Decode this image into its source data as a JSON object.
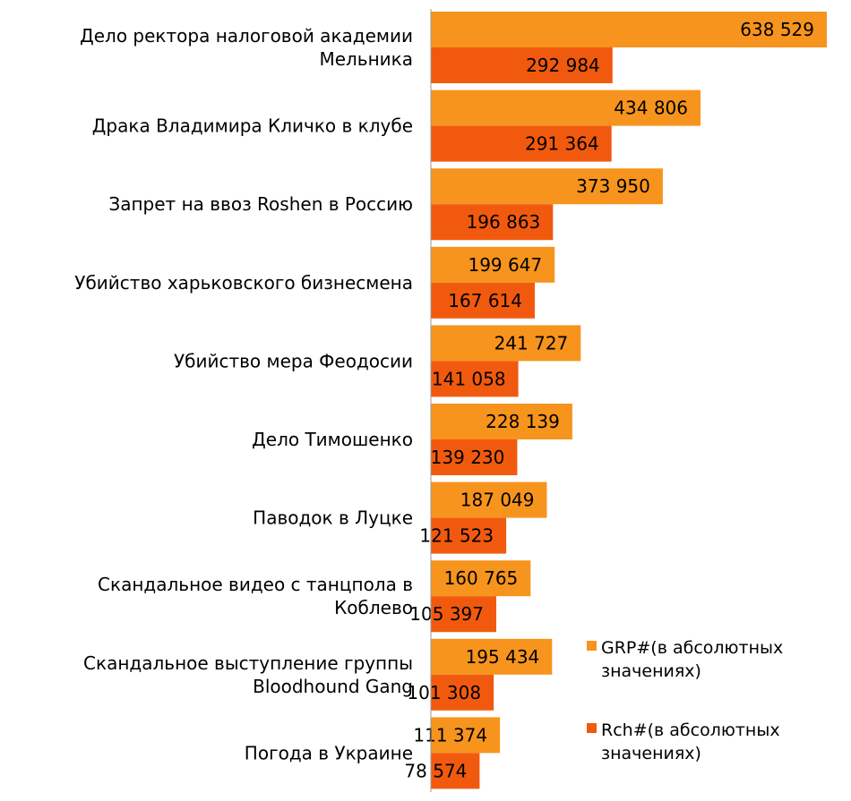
{
  "chart_data": {
    "type": "bar",
    "orientation": "horizontal",
    "title": "",
    "xlabel": "",
    "ylabel": "",
    "xlim": [
      0,
      650000
    ],
    "grid": false,
    "legend_position": "right",
    "categories": [
      [
        "Дело ректора налоговой академии",
        "Мельника"
      ],
      [
        "Драка Владимира Кличко в клубе"
      ],
      [
        "Запрет на ввоз Roshen в Россию"
      ],
      [
        "Убийство харьковского бизнесмена"
      ],
      [
        "Убийство мера Феодосии"
      ],
      [
        "Дело Тимошенко"
      ],
      [
        "Паводок в Луцке"
      ],
      [
        "Скандальное видео с танцпола в",
        "Коблево"
      ],
      [
        "Скандальное выступление группы",
        "Bloodhound Gang"
      ],
      [
        "Погода в Украине"
      ]
    ],
    "series": [
      {
        "name": [
          "GRP#(в абсолютных",
          "значениях)"
        ],
        "color": "#F7941D",
        "values": [
          638529,
          434806,
          373950,
          199647,
          241727,
          228139,
          187049,
          160765,
          195434,
          111374
        ],
        "labels": [
          "638 529",
          "434 806",
          "373 950",
          "199 647",
          "241 727",
          "228 139",
          "187 049",
          "160 765",
          "195 434",
          "111 374"
        ]
      },
      {
        "name": [
          "Rch#(в абсолютных",
          "значениях)"
        ],
        "color": "#F15A0E",
        "values": [
          292984,
          291364,
          196863,
          167614,
          141058,
          139230,
          121523,
          105397,
          101308,
          78574
        ],
        "labels": [
          "292 984",
          "291 364",
          "196 863",
          "167 614",
          "141 058",
          "139 230",
          "121 523",
          "105 397",
          "101 308",
          "78 574"
        ]
      }
    ]
  }
}
